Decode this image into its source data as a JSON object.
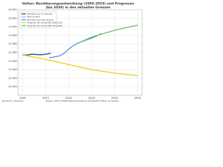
{
  "chart_data": {
    "type": "line",
    "title": "Velten: Bevölkerungsentwicklung (2005-2023) und Prognosen",
    "subtitle": "(bis 2030) in den aktuellen Grenzen",
    "xlim": [
      2004,
      2031
    ],
    "xticks": [
      2005,
      2010,
      2015,
      2020,
      2025,
      2030
    ],
    "ylim": [
      9500,
      14500
    ],
    "yticks": [
      {
        "value": 10000,
        "label": "10.000"
      },
      {
        "value": 10500,
        "label": "10.500"
      },
      {
        "value": 11000,
        "label": "11.000"
      },
      {
        "value": 11500,
        "label": "11.500"
      },
      {
        "value": 12000,
        "label": "12.000"
      },
      {
        "value": 12500,
        "label": "12.500"
      },
      {
        "value": 13000,
        "label": "13.000"
      },
      {
        "value": 13500,
        "label": "13.500"
      },
      {
        "value": 14000,
        "label": "14.000"
      },
      {
        "value": 14500,
        "label": "14.500"
      }
    ],
    "grid": true,
    "legend": "top-left",
    "series": [
      {
        "name": "Bevölkerung (vor Zensus)",
        "color": "#1f3f8f",
        "x": [
          2005,
          2006,
          2007,
          2008,
          2009,
          2010,
          2011
        ],
        "values": [
          11860,
          11850,
          11900,
          11880,
          11870,
          11900,
          11950
        ]
      },
      {
        "name": "Zensus 2011",
        "color": "#8fbbe8",
        "x": [
          2011
        ],
        "values": [
          11700
        ]
      },
      {
        "name": "Bevölkerung (nach Zensus)",
        "color": "#4f8fdc",
        "x": [
          2011,
          2012,
          2013,
          2014,
          2015,
          2016,
          2017,
          2018,
          2019,
          2020,
          2021,
          2022
        ],
        "values": [
          11700,
          11750,
          11800,
          11950,
          12200,
          12400,
          12550,
          12650,
          12750,
          12850,
          12950,
          13100
        ]
      },
      {
        "name": "Prognose des Landes BB 2005-2030",
        "color": "#e8d000",
        "x": [
          2005,
          2010,
          2015,
          2020,
          2025,
          2030
        ],
        "values": [
          11860,
          11600,
          11300,
          11000,
          10800,
          10650
        ]
      },
      {
        "name": "Prognose des Landes BB 2017-2030",
        "color": "#5ec45e",
        "x": [
          2017,
          2020,
          2025,
          2030
        ],
        "values": [
          12550,
          12900,
          13300,
          13600
        ]
      }
    ],
    "author": "By Pierre Cl. Ollenhardt",
    "source": "Quellen: Amt für Statistik Berlin-Brandenburg, Landesamt für Bauen und Verkehr"
  }
}
